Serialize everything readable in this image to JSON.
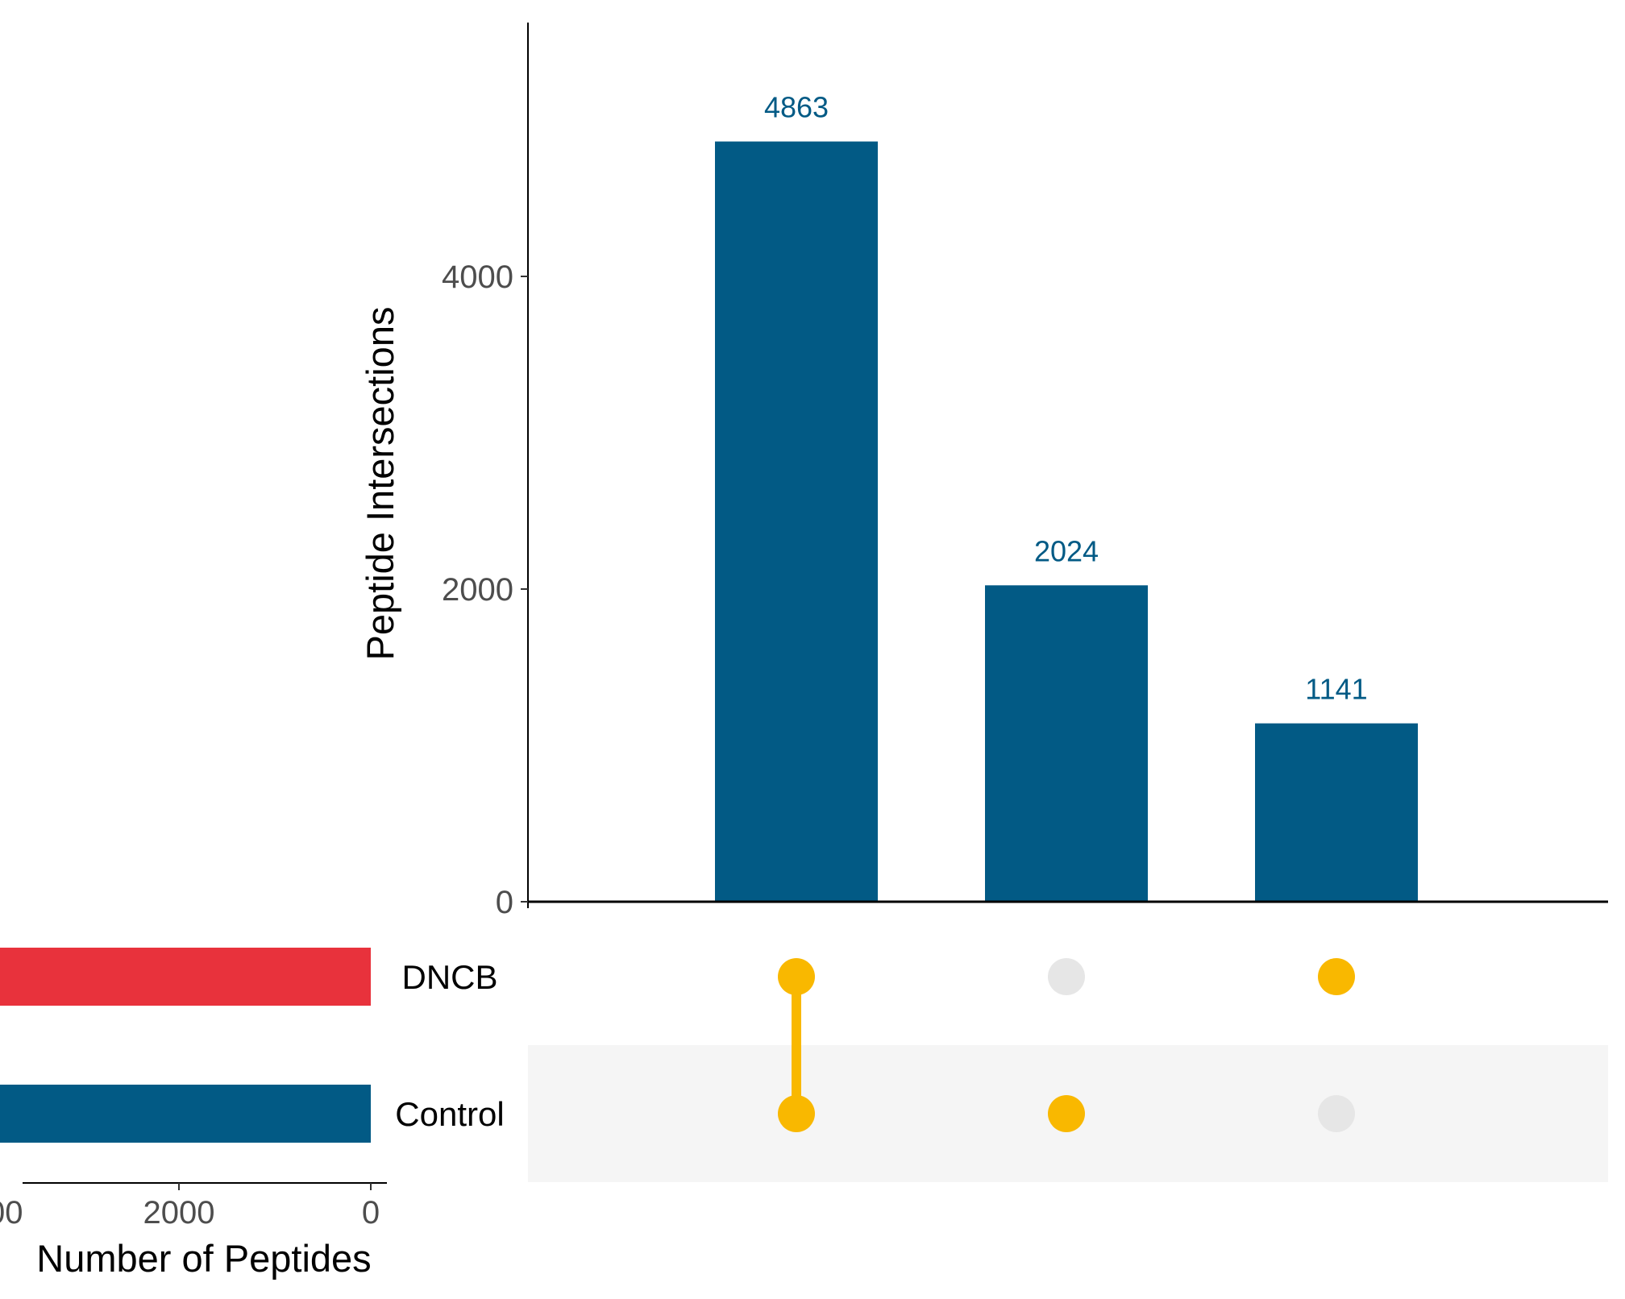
{
  "chart_data": [
    {
      "type": "bar",
      "role": "intersection-size",
      "ylabel": "Peptide Intersections",
      "ylim": [
        0,
        5500
      ],
      "yticks": [
        0,
        2000,
        4000
      ],
      "ytick_labels": [
        "0",
        "2000",
        "4000"
      ],
      "values": [
        4863,
        2024,
        1141
      ],
      "value_labels": [
        "4863",
        "2024",
        "1141"
      ],
      "bar_color": "#025a85",
      "label_color": "#025a85"
    },
    {
      "type": "bar",
      "orientation": "horizontal",
      "role": "set-size",
      "xlabel": "Number of Peptides",
      "xlim": [
        0,
        7200
      ],
      "xticks": [
        6000,
        4000,
        2000,
        0
      ],
      "xtick_labels": [
        "6000",
        "4000",
        "2000",
        "0"
      ],
      "categories": [
        "DNCB",
        "Control"
      ],
      "values": [
        6000,
        6900
      ],
      "colors": [
        "#e8323c",
        "#025a85"
      ]
    },
    {
      "type": "matrix",
      "role": "intersection-matrix",
      "sets": [
        "DNCB",
        "Control"
      ],
      "membership": [
        [
          1,
          1
        ],
        [
          0,
          1
        ],
        [
          1,
          0
        ]
      ],
      "active_color": "#f9b800",
      "inactive_color": "#e6e6e6",
      "stripe_color": "#f5f5f5"
    }
  ]
}
